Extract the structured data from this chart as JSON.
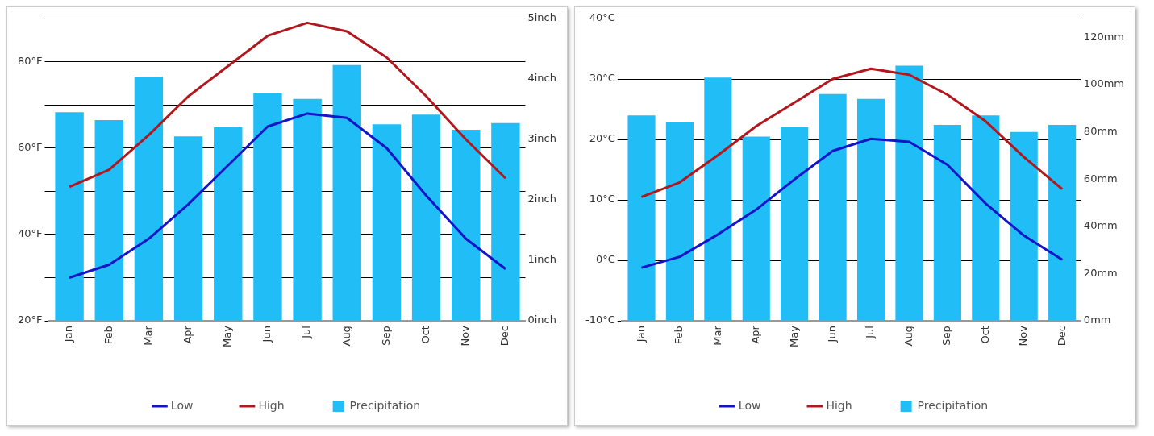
{
  "chart_data": [
    {
      "type": "bar",
      "categories": [
        "Jan",
        "Feb",
        "Mar",
        "Apr",
        "May",
        "Jun",
        "Jul",
        "Aug",
        "Sep",
        "Oct",
        "Nov",
        "Dec"
      ],
      "series": [
        {
          "name": "Low",
          "type": "line",
          "color": "#1414c8",
          "values": [
            30,
            33,
            39,
            47,
            56,
            65,
            68,
            67,
            60,
            49,
            39,
            32
          ]
        },
        {
          "name": "High",
          "type": "line",
          "color": "#b0181e",
          "values": [
            51,
            55,
            63,
            72,
            79,
            86,
            89,
            87,
            81,
            72,
            62,
            53
          ]
        },
        {
          "name": "Precipitation",
          "axis": "y2",
          "color": "#21bdf6",
          "values": [
            3.45,
            3.32,
            4.04,
            3.05,
            3.2,
            3.76,
            3.67,
            4.23,
            3.25,
            3.41,
            3.16,
            3.27
          ]
        }
      ],
      "ylim": [
        20,
        90
      ],
      "yticks": [
        {
          "value": 20,
          "label": "20°F"
        },
        {
          "value": 30,
          "label": null
        },
        {
          "value": 40,
          "label": "40°F"
        },
        {
          "value": 50,
          "label": null
        },
        {
          "value": 60,
          "label": "60°F"
        },
        {
          "value": 70,
          "label": null
        },
        {
          "value": 80,
          "label": "80°F"
        },
        {
          "value": 90,
          "label": null
        }
      ],
      "y2lim": [
        0,
        5
      ],
      "y2ticks": [
        {
          "value": 0,
          "label": "0inch"
        },
        {
          "value": 1,
          "label": "1inch"
        },
        {
          "value": 2,
          "label": "2inch"
        },
        {
          "value": 3,
          "label": "3inch"
        },
        {
          "value": 4,
          "label": "4inch"
        },
        {
          "value": 5,
          "label": "5inch"
        }
      ],
      "grid": "y",
      "legend": "bottom",
      "marker": "none",
      "line_style": "solid"
    },
    {
      "type": "bar",
      "categories": [
        "Jan",
        "Feb",
        "Mar",
        "Apr",
        "May",
        "Jun",
        "Jul",
        "Aug",
        "Sep",
        "Oct",
        "Nov",
        "Dec"
      ],
      "series": [
        {
          "name": "Low",
          "type": "line",
          "color": "#1414c8",
          "values": [
            -1.2,
            0.6,
            4.3,
            8.4,
            13.4,
            18.1,
            20.1,
            19.6,
            15.8,
            9.4,
            4.1,
            0.1
          ]
        },
        {
          "name": "High",
          "type": "line",
          "color": "#b0181e",
          "values": [
            10.5,
            12.9,
            17.4,
            22.2,
            26.1,
            30,
            31.7,
            30.7,
            27.4,
            23,
            17.1,
            11.8
          ]
        },
        {
          "name": "Precipitation",
          "axis": "y2",
          "color": "#21bdf6",
          "values": [
            87,
            84,
            103,
            78,
            82,
            96,
            94,
            108,
            83,
            87,
            80,
            83
          ]
        }
      ],
      "ylim": [
        -10,
        40
      ],
      "yticks": [
        {
          "value": -10,
          "label": "-10°C"
        },
        {
          "value": 0,
          "label": "0°C"
        },
        {
          "value": 10,
          "label": "10°C"
        },
        {
          "value": 20,
          "label": "20°C"
        },
        {
          "value": 30,
          "label": "30°C"
        },
        {
          "value": 40,
          "label": "40°C"
        }
      ],
      "y2lim": [
        0,
        128
      ],
      "y2ticks": [
        {
          "value": 0,
          "label": "0mm"
        },
        {
          "value": 20,
          "label": "20mm"
        },
        {
          "value": 40,
          "label": "40mm"
        },
        {
          "value": 60,
          "label": "60mm"
        },
        {
          "value": 80,
          "label": "80mm"
        },
        {
          "value": 100,
          "label": "100mm"
        },
        {
          "value": 120,
          "label": "120mm"
        }
      ],
      "grid": "y",
      "legend": "bottom",
      "marker": "none",
      "line_style": "solid"
    }
  ]
}
